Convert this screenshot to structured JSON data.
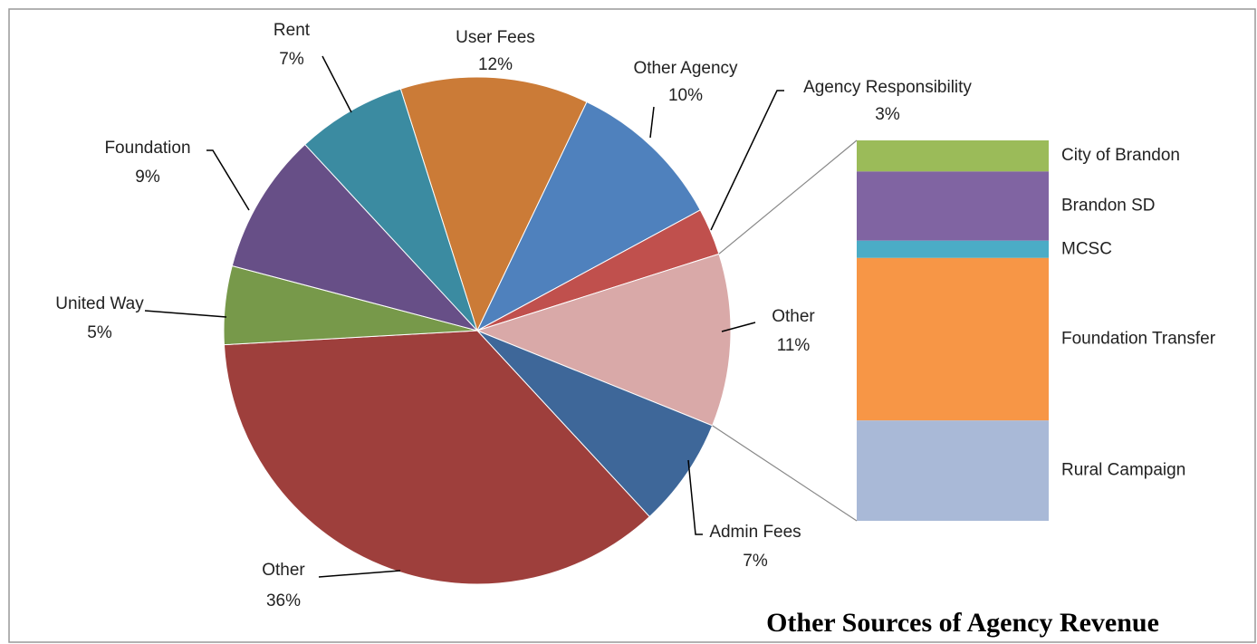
{
  "chart_data": {
    "type": "pie-of-bar",
    "title": "Other Sources of Agency Revenue",
    "categories": [
      "User Fees",
      "Other Agency",
      "Agency Responsibility",
      "Other",
      "Admin Fees",
      "Other",
      "United Way",
      "Foundation",
      "Rent"
    ],
    "values": [
      12,
      10,
      3,
      11,
      7,
      36,
      5,
      9,
      7
    ],
    "value_labels": [
      "12%",
      "10%",
      "3%",
      "11%",
      "7%",
      "36%",
      "5%",
      "9%",
      "7%"
    ],
    "colors": [
      "#cb7b37",
      "#4f81bd",
      "#c0504d",
      "#d9a9a8",
      "#3e6799",
      "#9e3f3c",
      "#77994a",
      "#674f87",
      "#3b8ba1"
    ],
    "bar": {
      "categories": [
        "City of Brandon",
        "Brandon SD",
        "MCSC",
        "Foundation Transfer",
        "Rural Campaign"
      ],
      "values": [
        0.9,
        2.0,
        0.5,
        4.7,
        2.9
      ],
      "colors": [
        "#9bbb59",
        "#8064a2",
        "#4bacc6",
        "#f79646",
        "#a9b9d7"
      ]
    }
  }
}
